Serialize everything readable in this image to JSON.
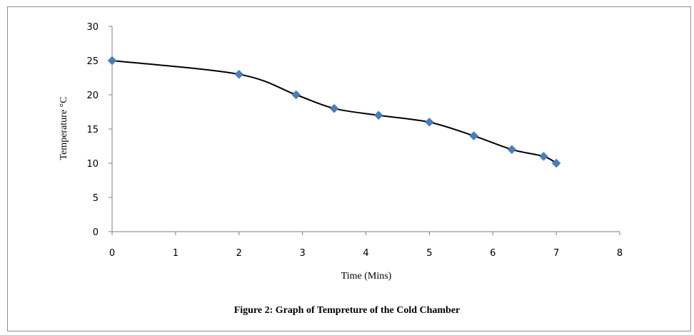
{
  "figure": {
    "caption": "Figure 2: Graph of Tempreture of the Cold Chamber"
  },
  "chart_data": {
    "type": "scatter",
    "title": "",
    "xlabel": "Time (Mins)",
    "ylabel": "Temperature °C",
    "xlim": [
      0,
      8
    ],
    "ylim": [
      0,
      30
    ],
    "xticks": [
      0,
      1,
      2,
      3,
      4,
      5,
      6,
      7,
      8
    ],
    "yticks": [
      0,
      5,
      10,
      15,
      20,
      25,
      30
    ],
    "grid": false,
    "legend": "none",
    "line": "smoothed",
    "series": [
      {
        "color": "#4a7ebb",
        "line_color": "#000000",
        "marker": "diamond",
        "x": [
          0,
          2,
          2.9,
          3.5,
          4.2,
          5,
          5.7,
          6.3,
          6.8,
          7
        ],
        "y": [
          25,
          23,
          20,
          18,
          17,
          16,
          14,
          12,
          11,
          10
        ]
      }
    ]
  }
}
